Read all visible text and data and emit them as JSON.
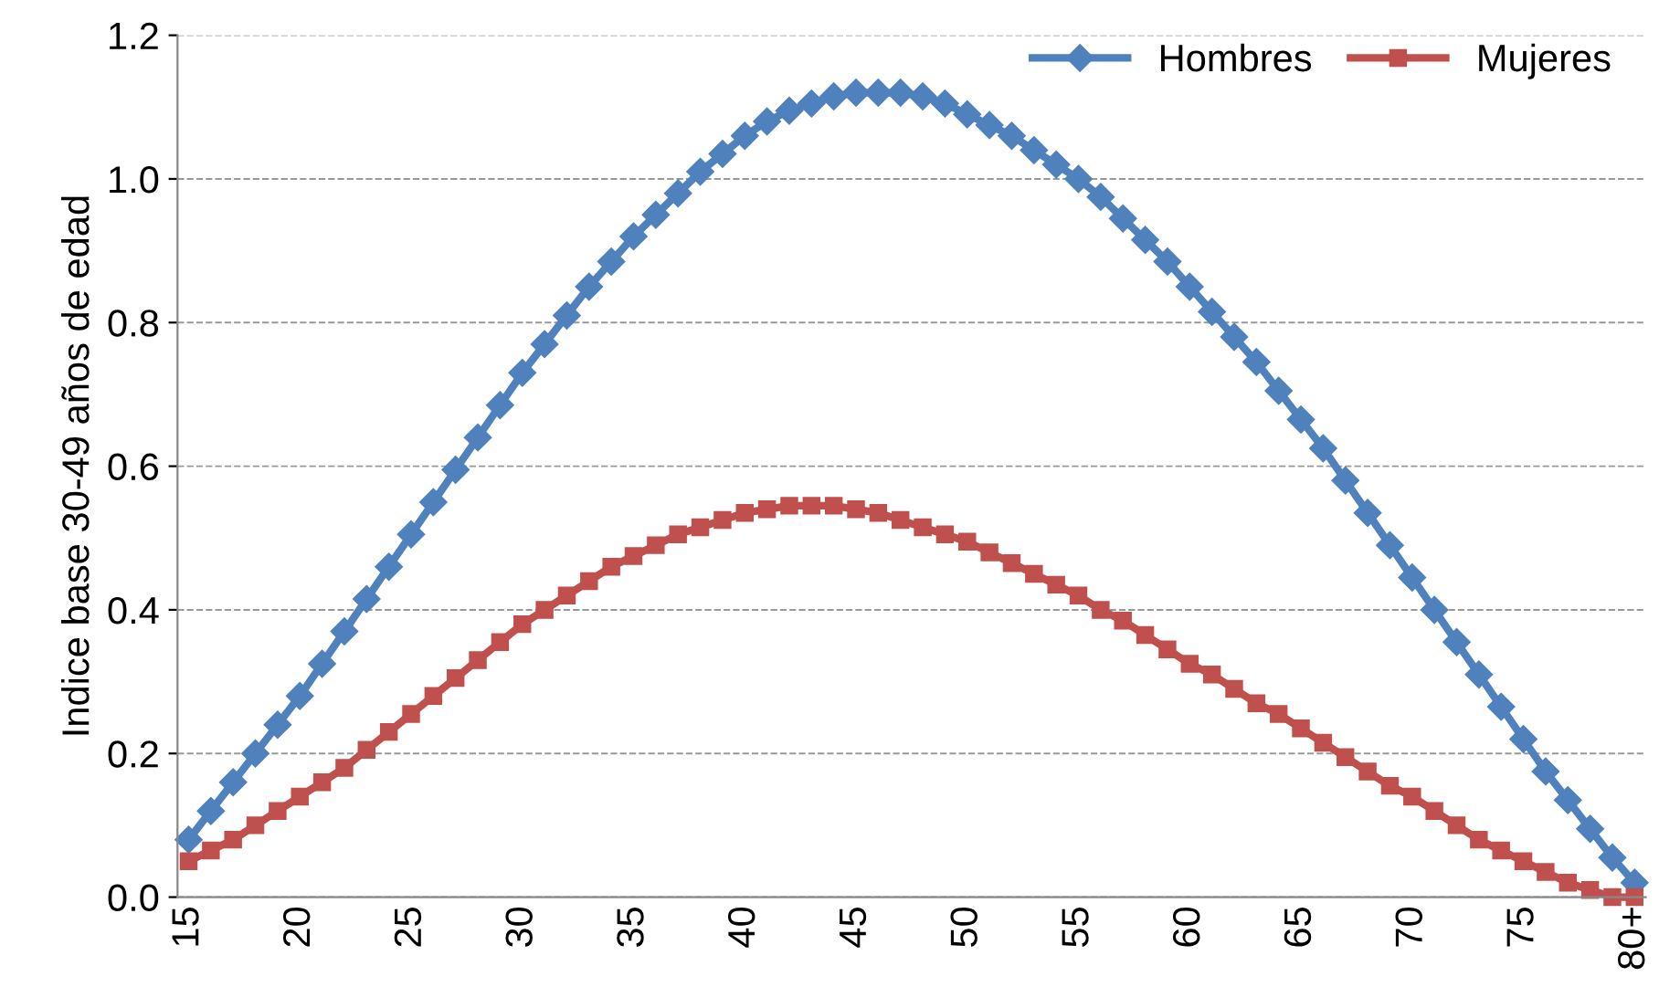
{
  "chart_data": {
    "type": "line",
    "ylabel": "Indice base 30-49 años de edad",
    "categories": [
      "15",
      null,
      null,
      null,
      null,
      "20",
      null,
      null,
      null,
      null,
      "25",
      null,
      null,
      null,
      null,
      "30",
      null,
      null,
      null,
      null,
      "35",
      null,
      null,
      null,
      null,
      "40",
      null,
      null,
      null,
      null,
      "45",
      null,
      null,
      null,
      null,
      "50",
      null,
      null,
      null,
      null,
      "55",
      null,
      null,
      null,
      null,
      "60",
      null,
      null,
      null,
      null,
      "65",
      null,
      null,
      null,
      null,
      "70",
      null,
      null,
      null,
      null,
      "75",
      null,
      null,
      null,
      null,
      "80+"
    ],
    "series": [
      {
        "name": "Hombres",
        "color": "#4f81bd",
        "marker": "diamond",
        "values": [
          0.08,
          0.12,
          0.16,
          0.2,
          0.24,
          0.28,
          0.325,
          0.37,
          0.415,
          0.46,
          0.505,
          0.55,
          0.595,
          0.64,
          0.685,
          0.73,
          0.77,
          0.81,
          0.85,
          0.885,
          0.92,
          0.95,
          0.98,
          1.01,
          1.035,
          1.06,
          1.08,
          1.095,
          1.105,
          1.115,
          1.12,
          1.12,
          1.12,
          1.115,
          1.105,
          1.09,
          1.075,
          1.06,
          1.04,
          1.02,
          1.0,
          0.975,
          0.945,
          0.915,
          0.885,
          0.85,
          0.815,
          0.78,
          0.745,
          0.705,
          0.665,
          0.625,
          0.58,
          0.535,
          0.49,
          0.445,
          0.4,
          0.355,
          0.31,
          0.265,
          0.22,
          0.175,
          0.135,
          0.095,
          0.055,
          0.02
        ]
      },
      {
        "name": "Mujeres",
        "color": "#c0504d",
        "marker": "square",
        "values": [
          0.05,
          0.065,
          0.08,
          0.1,
          0.12,
          0.14,
          0.16,
          0.18,
          0.205,
          0.23,
          0.255,
          0.28,
          0.305,
          0.33,
          0.355,
          0.38,
          0.4,
          0.42,
          0.44,
          0.46,
          0.475,
          0.49,
          0.505,
          0.515,
          0.525,
          0.535,
          0.54,
          0.545,
          0.545,
          0.545,
          0.54,
          0.535,
          0.525,
          0.515,
          0.505,
          0.495,
          0.48,
          0.465,
          0.45,
          0.435,
          0.42,
          0.4,
          0.385,
          0.365,
          0.345,
          0.325,
          0.31,
          0.29,
          0.27,
          0.255,
          0.235,
          0.215,
          0.195,
          0.175,
          0.155,
          0.14,
          0.12,
          0.1,
          0.08,
          0.065,
          0.05,
          0.035,
          0.02,
          0.01,
          0.0,
          0.0
        ]
      }
    ],
    "ylim": [
      0,
      1.2
    ],
    "yticks": [
      {
        "value": 0,
        "label": "0.0"
      },
      {
        "value": 0.2,
        "label": "0.2"
      },
      {
        "value": 0.4,
        "label": "0.4"
      },
      {
        "value": 0.6,
        "label": "0.6"
      },
      {
        "value": 0.8,
        "label": "0.8"
      },
      {
        "value": 1.0,
        "label": "1.0"
      },
      {
        "value": 1.2,
        "label": "1.2"
      }
    ],
    "grid": "y",
    "legend": "top right",
    "line_style": "solid"
  }
}
